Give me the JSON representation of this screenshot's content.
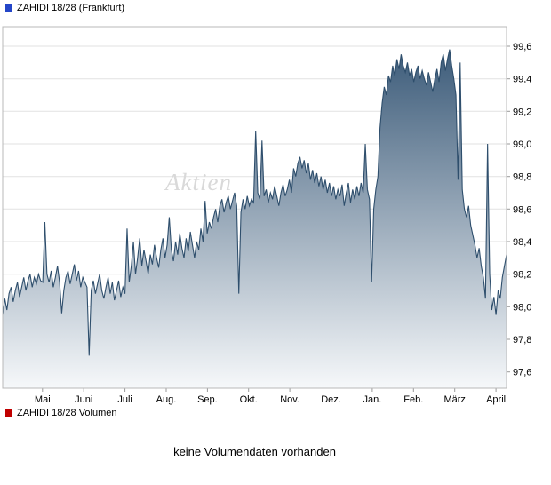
{
  "header": {
    "title": "ZAHIDI 18/28 (Frankfurt)"
  },
  "watermark": "Aktien",
  "volume": {
    "title": "ZAHIDI 18/28 Volumen",
    "message": "keine Volumendaten vorhanden"
  },
  "colors": {
    "title_marker": "#2446c8",
    "volume_marker": "#c00000",
    "grid": "#e2e2e2",
    "border": "#b8b8b8",
    "tick": "#999999"
  },
  "chart_data": {
    "type": "area",
    "title": "ZAHIDI 18/28 (Frankfurt)",
    "x_tick_labels": [
      "Mai",
      "Juni",
      "Juli",
      "Aug.",
      "Sep.",
      "Okt.",
      "Nov.",
      "Dez.",
      "Jan.",
      "Feb.",
      "März",
      "April"
    ],
    "y_ticks": [
      99.6,
      99.4,
      99.2,
      99.0,
      98.8,
      98.6,
      98.4,
      98.2,
      98.0,
      97.8,
      97.6
    ],
    "y_tick_labels": [
      "99,6",
      "99,4",
      "99,2",
      "99,0",
      "98,8",
      "98,6",
      "98,4",
      "98,2",
      "98,0",
      "97,8",
      "97,6"
    ],
    "ylim": [
      97.5,
      99.72
    ],
    "grid": "horizontal",
    "legend": "none",
    "line_color": "#2e4e6c",
    "fill_top_color": "#3d5c7a",
    "fill_bottom_color": "#f6f8fa",
    "values": [
      97.95,
      98.05,
      97.98,
      98.08,
      98.12,
      98.03,
      98.1,
      98.15,
      98.06,
      98.12,
      98.18,
      98.1,
      98.16,
      98.2,
      98.12,
      98.18,
      98.14,
      98.2,
      98.16,
      98.15,
      98.52,
      98.2,
      98.15,
      98.22,
      98.12,
      98.18,
      98.25,
      98.15,
      97.96,
      98.1,
      98.18,
      98.22,
      98.14,
      98.2,
      98.26,
      98.16,
      98.22,
      98.12,
      98.18,
      98.15,
      98.12,
      97.7,
      98.1,
      98.16,
      98.08,
      98.14,
      98.2,
      98.1,
      98.05,
      98.12,
      98.18,
      98.08,
      98.15,
      98.04,
      98.1,
      98.16,
      98.06,
      98.12,
      98.08,
      98.48,
      98.15,
      98.25,
      98.4,
      98.2,
      98.3,
      98.42,
      98.25,
      98.35,
      98.28,
      98.2,
      98.32,
      98.26,
      98.38,
      98.3,
      98.24,
      98.35,
      98.42,
      98.3,
      98.38,
      98.55,
      98.35,
      98.28,
      98.4,
      98.32,
      98.45,
      98.36,
      98.3,
      98.42,
      98.34,
      98.46,
      98.38,
      98.3,
      98.4,
      98.35,
      98.48,
      98.4,
      98.65,
      98.45,
      98.52,
      98.48,
      98.55,
      98.6,
      98.52,
      98.62,
      98.66,
      98.58,
      98.64,
      98.68,
      98.6,
      98.65,
      98.7,
      98.62,
      98.08,
      98.58,
      98.66,
      98.6,
      98.68,
      98.62,
      98.66,
      98.64,
      99.08,
      98.7,
      98.66,
      99.02,
      98.68,
      98.72,
      98.64,
      98.7,
      98.66,
      98.74,
      98.68,
      98.62,
      98.7,
      98.75,
      98.68,
      98.72,
      98.78,
      98.7,
      98.85,
      98.8,
      98.88,
      98.92,
      98.85,
      98.9,
      98.82,
      98.88,
      98.78,
      98.84,
      98.76,
      98.82,
      98.74,
      98.8,
      98.72,
      98.78,
      98.7,
      98.76,
      98.68,
      98.74,
      98.66,
      98.72,
      98.68,
      98.75,
      98.62,
      98.7,
      98.76,
      98.64,
      98.72,
      98.66,
      98.74,
      98.68,
      98.76,
      98.7,
      99.0,
      98.72,
      98.66,
      98.15,
      98.6,
      98.72,
      98.8,
      99.1,
      99.25,
      99.35,
      99.3,
      99.42,
      99.38,
      99.48,
      99.42,
      99.52,
      99.46,
      99.55,
      99.48,
      99.44,
      99.5,
      99.42,
      99.46,
      99.38,
      99.44,
      99.48,
      99.4,
      99.45,
      99.4,
      99.36,
      99.44,
      99.38,
      99.32,
      99.4,
      99.46,
      99.38,
      99.5,
      99.55,
      99.45,
      99.52,
      99.58,
      99.48,
      99.4,
      99.3,
      98.78,
      99.5,
      98.72,
      98.6,
      98.55,
      98.62,
      98.5,
      98.44,
      98.38,
      98.3,
      98.36,
      98.25,
      98.18,
      98.05,
      99.0,
      98.2,
      97.98,
      98.06,
      97.95,
      98.1,
      98.05,
      98.18,
      98.25,
      98.32
    ]
  }
}
